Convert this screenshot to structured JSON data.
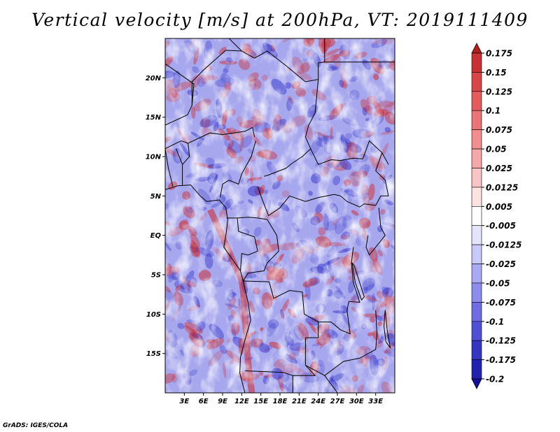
{
  "title": "Vertical velocity [m/s] at 200hPa, VT: 2019111409",
  "credit": "GrADS: IGES/COLA",
  "map": {
    "lon_range": [
      0,
      36
    ],
    "lat_range": [
      -20,
      25
    ],
    "lon_ticks": [
      {
        "value": 3,
        "label": "3E"
      },
      {
        "value": 6,
        "label": "6E"
      },
      {
        "value": 9,
        "label": "9E"
      },
      {
        "value": 12,
        "label": "12E"
      },
      {
        "value": 15,
        "label": "15E"
      },
      {
        "value": 18,
        "label": "18E"
      },
      {
        "value": 21,
        "label": "21E"
      },
      {
        "value": 24,
        "label": "24E"
      },
      {
        "value": 27,
        "label": "27E"
      },
      {
        "value": 30,
        "label": "30E"
      },
      {
        "value": 33,
        "label": "33E"
      }
    ],
    "lat_ticks": [
      {
        "value": 20,
        "label": "20N"
      },
      {
        "value": 15,
        "label": "15N"
      },
      {
        "value": 10,
        "label": "10N"
      },
      {
        "value": 5,
        "label": "5N"
      },
      {
        "value": 0,
        "label": "EQ"
      },
      {
        "value": -5,
        "label": "5S"
      },
      {
        "value": -10,
        "label": "10S"
      },
      {
        "value": -15,
        "label": "15S"
      }
    ],
    "colors": {
      "positive": "#d02828",
      "negative": "#3030c8",
      "outline": "#000000"
    }
  },
  "colorbar": {
    "levels": [
      "0.175",
      "0.15",
      "0.125",
      "0.1",
      "0.075",
      "0.05",
      "0.025",
      "0.0125",
      "0.005",
      "-0.005",
      "-0.0125",
      "-0.025",
      "-0.05",
      "-0.075",
      "-0.1",
      "-0.125",
      "-0.175",
      "-0.2"
    ],
    "colors": [
      "#b41e1e",
      "#c83232",
      "#d84646",
      "#e45c5c",
      "#ec7474",
      "#f28e8e",
      "#f6a8a8",
      "#fac4c4",
      "#fde2e2",
      "#ffffff",
      "#e4e4fc",
      "#c8c8fa",
      "#aaaaf4",
      "#8c8cec",
      "#6e6ee2",
      "#5050d6",
      "#3636c4",
      "#2222b0",
      "#10109a"
    ]
  }
}
